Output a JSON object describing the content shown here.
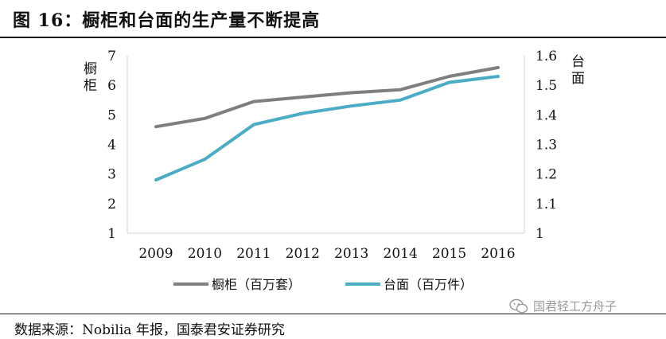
{
  "title": "图 16：橱柜和台面的生产量不断提高",
  "source": "数据来源：Nobilia 年报，国泰君安证券研究",
  "watermark": {
    "text": "国君轻工方舟子",
    "icon": "wechat-icon"
  },
  "chart_data": {
    "type": "line",
    "x": [
      "2009",
      "2010",
      "2011",
      "2012",
      "2013",
      "2014",
      "2015",
      "2016"
    ],
    "left_axis": {
      "label": "橱柜",
      "ylim": [
        1,
        7
      ],
      "ticks": [
        "1",
        "2",
        "3",
        "4",
        "5",
        "6",
        "7"
      ]
    },
    "right_axis": {
      "label": "台面",
      "ylim": [
        1,
        1.6
      ],
      "ticks": [
        "1",
        "1.1",
        "1.2",
        "1.3",
        "1.4",
        "1.5",
        "1.6"
      ]
    },
    "grid": false,
    "legend_position": "bottom",
    "series": [
      {
        "name": "橱柜（百万套）",
        "axis": "left",
        "color": "#7f7f7f",
        "values": [
          4.6,
          4.88,
          5.45,
          5.6,
          5.75,
          5.85,
          6.3,
          6.6
        ]
      },
      {
        "name": "台面（百万件）",
        "axis": "right",
        "color": "#4bacc6",
        "values": [
          1.18,
          1.25,
          1.367,
          1.405,
          1.43,
          1.45,
          1.51,
          1.53
        ]
      }
    ]
  }
}
